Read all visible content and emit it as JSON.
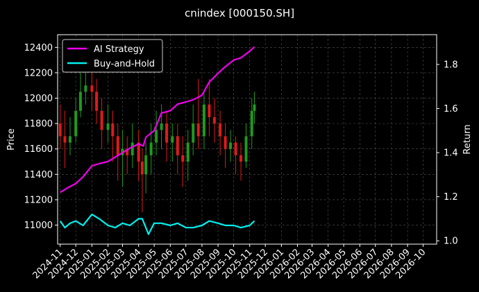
{
  "chart_data": {
    "type": "line",
    "title": "cnindex [000150.SH]",
    "xlabel": "",
    "ylabel_left": "Price",
    "ylabel_right": "Return",
    "x_ticks": [
      "2024-11",
      "2024-12",
      "2025-01",
      "2025-02",
      "2025-03",
      "2025-04",
      "2025-05",
      "2025-06",
      "2025-07",
      "2025-08",
      "2025-09",
      "2025-10",
      "2025-11",
      "2025-12",
      "2026-01",
      "2026-02",
      "2026-03",
      "2026-04",
      "2026-05",
      "2026-06",
      "2026-07",
      "2026-08",
      "2026-09",
      "2026-10"
    ],
    "xlim": [
      "2024-10-27",
      "2026-10-27"
    ],
    "ylim_left": [
      10850,
      12500
    ],
    "ylim_right": [
      0.985,
      1.935
    ],
    "y_ticks_left": [
      11000,
      11200,
      11400,
      11600,
      11800,
      12000,
      12200,
      12400
    ],
    "y_ticks_right": [
      1.0,
      1.2,
      1.4,
      1.6,
      1.8
    ],
    "grid": true,
    "legend_position": "top-left",
    "colors": {
      "background": "#000000",
      "grid": "#555555",
      "up": "#1f9a1f",
      "down": "#e01a1a",
      "ai_strategy": "#ee00ee",
      "buy_and_hold": "#00f0f0"
    },
    "series": [
      {
        "name": "AI Strategy",
        "axis": "right",
        "x": [
          "2024-11-01",
          "2024-11-15",
          "2024-12-01",
          "2024-12-15",
          "2025-01-01",
          "2025-01-15",
          "2025-02-01",
          "2025-02-15",
          "2025-03-01",
          "2025-03-15",
          "2025-04-01",
          "2025-04-10",
          "2025-04-15",
          "2025-05-01",
          "2025-05-15",
          "2025-06-01",
          "2025-06-15",
          "2025-07-01",
          "2025-07-15",
          "2025-08-01",
          "2025-08-15",
          "2025-09-01",
          "2025-09-15",
          "2025-10-01",
          "2025-10-15",
          "2025-11-01",
          "2025-11-10"
        ],
        "values": [
          1.22,
          1.24,
          1.26,
          1.29,
          1.34,
          1.35,
          1.36,
          1.38,
          1.4,
          1.42,
          1.44,
          1.43,
          1.47,
          1.5,
          1.58,
          1.59,
          1.62,
          1.63,
          1.64,
          1.66,
          1.72,
          1.76,
          1.79,
          1.82,
          1.83,
          1.86,
          1.88
        ]
      },
      {
        "name": "Buy-and-Hold",
        "axis": "right",
        "x": [
          "2024-11-01",
          "2024-11-10",
          "2024-11-20",
          "2024-12-01",
          "2024-12-15",
          "2025-01-01",
          "2025-01-15",
          "2025-02-01",
          "2025-02-15",
          "2025-03-01",
          "2025-03-15",
          "2025-04-01",
          "2025-04-08",
          "2025-04-20",
          "2025-05-01",
          "2025-05-15",
          "2025-06-01",
          "2025-06-15",
          "2025-07-01",
          "2025-07-15",
          "2025-08-01",
          "2025-08-15",
          "2025-09-01",
          "2025-09-15",
          "2025-10-01",
          "2025-10-15",
          "2025-11-01",
          "2025-11-10"
        ],
        "values": [
          1.09,
          1.06,
          1.08,
          1.09,
          1.07,
          1.12,
          1.1,
          1.07,
          1.06,
          1.08,
          1.07,
          1.1,
          1.1,
          1.03,
          1.08,
          1.08,
          1.07,
          1.08,
          1.06,
          1.06,
          1.07,
          1.09,
          1.08,
          1.07,
          1.07,
          1.06,
          1.07,
          1.09
        ]
      },
      {
        "name": "cnindex",
        "axis": "left",
        "style": "candle",
        "x": [
          "2024-11-01",
          "2024-11-10",
          "2024-11-20",
          "2024-12-01",
          "2024-12-10",
          "2024-12-20",
          "2025-01-01",
          "2025-01-10",
          "2025-01-20",
          "2025-02-01",
          "2025-02-10",
          "2025-02-20",
          "2025-03-01",
          "2025-03-10",
          "2025-03-20",
          "2025-04-01",
          "2025-04-08",
          "2025-04-15",
          "2025-04-25",
          "2025-05-05",
          "2025-05-15",
          "2025-05-25",
          "2025-06-05",
          "2025-06-15",
          "2025-06-25",
          "2025-07-05",
          "2025-07-15",
          "2025-07-25",
          "2025-08-05",
          "2025-08-15",
          "2025-08-25",
          "2025-09-05",
          "2025-09-15",
          "2025-09-25",
          "2025-10-05",
          "2025-10-15",
          "2025-10-25",
          "2025-11-05",
          "2025-11-10"
        ],
        "open": [
          11800,
          11700,
          11650,
          11700,
          11900,
          12050,
          12100,
          12050,
          11900,
          11750,
          11800,
          11700,
          11550,
          11600,
          11550,
          11650,
          11500,
          11400,
          11550,
          11650,
          11750,
          11800,
          11650,
          11700,
          11550,
          11500,
          11650,
          11800,
          11700,
          11950,
          11850,
          11800,
          11700,
          11600,
          11650,
          11550,
          11500,
          11700,
          11900
        ],
        "close": [
          11700,
          11650,
          11700,
          11900,
          12050,
          12100,
          12050,
          11900,
          11750,
          11800,
          11700,
          11550,
          11600,
          11550,
          11650,
          11500,
          11400,
          11550,
          11650,
          11750,
          11800,
          11650,
          11700,
          11550,
          11500,
          11650,
          11800,
          11700,
          11950,
          11850,
          11800,
          11700,
          11600,
          11650,
          11550,
          11500,
          11700,
          11900,
          11950
        ],
        "high": [
          11950,
          11900,
          11850,
          12000,
          12200,
          12250,
          12200,
          12150,
          12000,
          11950,
          11900,
          11800,
          11750,
          11700,
          11800,
          11750,
          11600,
          11650,
          11800,
          11900,
          11950,
          11900,
          11800,
          11800,
          11700,
          11750,
          11950,
          12150,
          12050,
          12150,
          12000,
          11900,
          11800,
          11750,
          11700,
          11650,
          11800,
          12000,
          12050
        ],
        "low": [
          11600,
          11450,
          11550,
          11650,
          11850,
          11950,
          11900,
          11800,
          11600,
          11650,
          11500,
          11350,
          11300,
          11400,
          11450,
          11350,
          11100,
          11250,
          11400,
          11550,
          11600,
          11500,
          11500,
          11400,
          11300,
          11350,
          11550,
          11600,
          11600,
          11700,
          11650,
          11550,
          11450,
          11500,
          11400,
          11350,
          11450,
          11600,
          11800
        ]
      }
    ]
  }
}
